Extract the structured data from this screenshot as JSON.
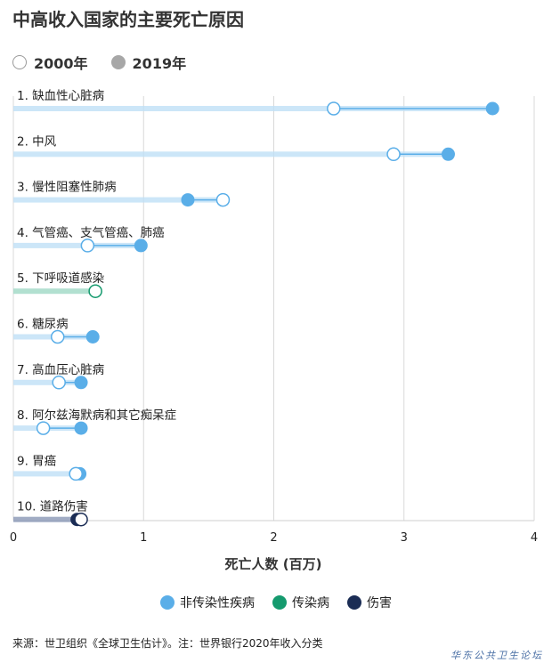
{
  "title": "中高收入国家的主要死亡原因",
  "legend_top": {
    "y2000": "2000年",
    "y2019": "2019年"
  },
  "legend_bottom": [
    {
      "label": "非传染性疾病",
      "color": "#5aaee8"
    },
    {
      "label": "传染病",
      "color": "#159a6e"
    },
    {
      "label": "伤害",
      "color": "#1b2d55"
    }
  ],
  "source": "来源：世卫组织《全球卫生估计》。注：世界银行2020年收入分类",
  "watermark": "华东公共卫生论坛",
  "chart_data": {
    "type": "dumbbell",
    "xlabel": "死亡人数 (百万)",
    "xlim": [
      0,
      4
    ],
    "xticks": [
      0,
      1,
      2,
      3,
      4
    ],
    "grid": true,
    "series_names": [
      "2000年",
      "2019年"
    ],
    "categories": [
      {
        "label": "1. 缺血性心脏病",
        "y2000": 2.46,
        "y2019": 3.68,
        "group": "非传染性疾病"
      },
      {
        "label": "2. 中风",
        "y2000": 2.92,
        "y2019": 3.34,
        "group": "非传染性疾病"
      },
      {
        "label": "3. 慢性阻塞性肺病",
        "y2000": 1.61,
        "y2019": 1.34,
        "group": "非传染性疾病"
      },
      {
        "label": "4. 气管癌、支气管癌、肺癌",
        "y2000": 0.57,
        "y2019": 0.98,
        "group": "非传染性疾病"
      },
      {
        "label": "5. 下呼吸道感染",
        "y2000": 0.63,
        "y2019": 0.63,
        "group": "传染病"
      },
      {
        "label": "6. 糖尿病",
        "y2000": 0.34,
        "y2019": 0.61,
        "group": "非传染性疾病"
      },
      {
        "label": "7. 高血压心脏病",
        "y2000": 0.35,
        "y2019": 0.52,
        "group": "非传染性疾病"
      },
      {
        "label": "8. 阿尔兹海默病和其它痴呆症",
        "y2000": 0.23,
        "y2019": 0.52,
        "group": "非传染性疾病"
      },
      {
        "label": "9. 胃癌",
        "y2000": 0.48,
        "y2019": 0.51,
        "group": "非传染性疾病"
      },
      {
        "label": "10. 道路伤害",
        "y2000": 0.52,
        "y2019": 0.49,
        "group": "伤害"
      }
    ]
  }
}
